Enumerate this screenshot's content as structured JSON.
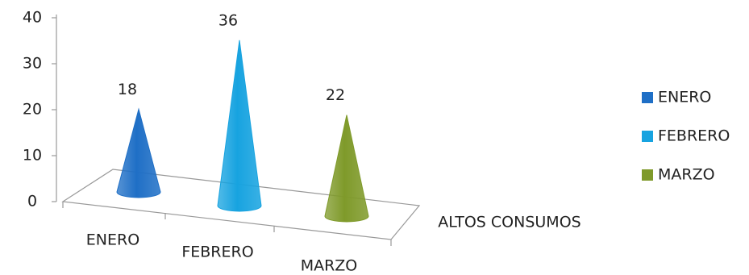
{
  "chart_data": {
    "type": "cone",
    "categories": [
      "ENERO",
      "FEBRERO",
      "MARZO"
    ],
    "series": [
      {
        "name": "ALTOS CONSUMOS",
        "values": [
          18,
          36,
          22
        ]
      }
    ],
    "colors": [
      "#1f6fc6",
      "#17a3e0",
      "#7f9a2a"
    ],
    "ylim": [
      0,
      40
    ],
    "yticks": [
      0,
      10,
      20,
      30,
      40
    ],
    "legend": "right"
  }
}
